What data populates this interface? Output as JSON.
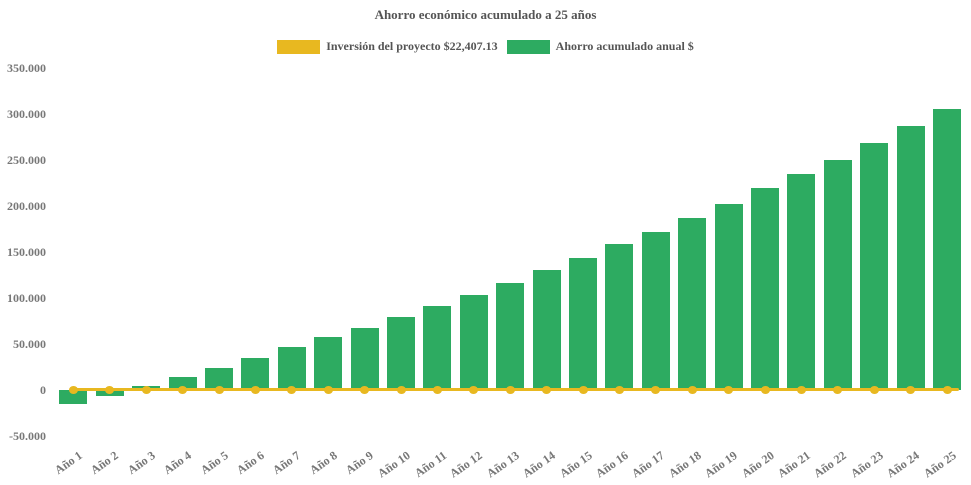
{
  "title": "Ahorro económico acumulado a 25 años",
  "legend": {
    "items": [
      {
        "label": "Inversión del proyecto $22,407.13",
        "color": "#e8b820",
        "series_type": "line"
      },
      {
        "label": "Ahorro acumulado anual $",
        "color": "#2dab61",
        "series_type": "bar"
      }
    ]
  },
  "colors": {
    "background": "#ffffff",
    "bar_green": "#2dab61",
    "line_yellow": "#e8b820",
    "title_text": "#555555",
    "tick_text": "#777777"
  },
  "chart_data": {
    "type": "bar",
    "title": "Ahorro económico acumulado a 25 años",
    "categories": [
      "Año 1",
      "Año 2",
      "Año 3",
      "Año 4",
      "Año 5",
      "Año 6",
      "Año 7",
      "Año 8",
      "Año 9",
      "Año 10",
      "Año 11",
      "Año 12",
      "Año 13",
      "Año 14",
      "Año 15",
      "Año 16",
      "Año 17",
      "Año 18",
      "Año 19",
      "Año 20",
      "Año 21",
      "Año 22",
      "Año 23",
      "Año 24",
      "Año 25"
    ],
    "series": [
      {
        "name": "Inversión del proyecto $22,407.13",
        "type": "line",
        "color": "#e8b820",
        "marker": "circle",
        "values": [
          0,
          0,
          0,
          0,
          0,
          0,
          0,
          0,
          0,
          0,
          0,
          0,
          0,
          0,
          0,
          0,
          0,
          0,
          0,
          0,
          0,
          0,
          0,
          0,
          0
        ]
      },
      {
        "name": "Ahorro acumulado anual $",
        "type": "bar",
        "color": "#2dab61",
        "values": [
          -15500,
          -7000,
          4500,
          14000,
          23500,
          35000,
          46500,
          57000,
          67500,
          79500,
          91000,
          103500,
          116000,
          130000,
          143000,
          158000,
          171000,
          187000,
          202000,
          219000,
          234000,
          250000,
          268500,
          286000,
          305000
        ]
      }
    ],
    "xlabel": "",
    "ylabel": "",
    "ylim": [
      -50000,
      350000
    ],
    "ytick_step": 50000,
    "ytick_labels": [
      "350.000",
      "300.000",
      "250.000",
      "200.000",
      "150.000",
      "100.000",
      "50.000",
      "0",
      "-50.000"
    ],
    "grid": false,
    "legend_position": "top",
    "x_tick_rotation": -35
  }
}
